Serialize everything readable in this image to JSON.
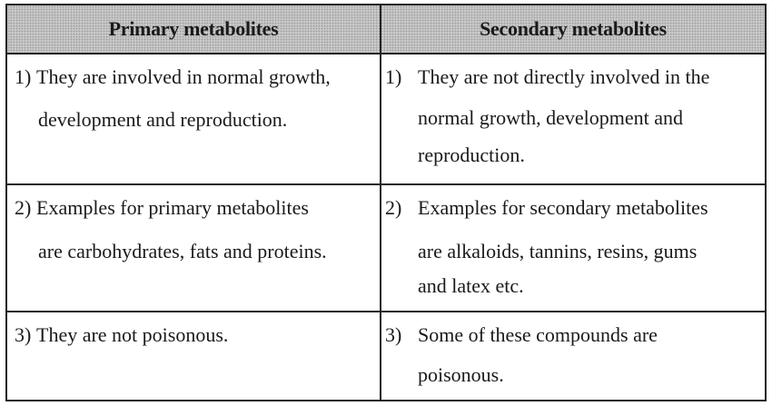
{
  "table": {
    "headers": [
      "Primary metabolites",
      "Secondary metabolites"
    ],
    "rows": [
      {
        "primary": {
          "number": "1)",
          "lines": [
            "They are involved in normal growth,",
            "development and reproduction."
          ]
        },
        "secondary": {
          "number": "1)",
          "lines": [
            "They are not directly involved in the",
            "normal growth, development and",
            "reproduction."
          ]
        }
      },
      {
        "primary": {
          "number": "2)",
          "lines": [
            "Examples for primary metabolites",
            "are carbohydrates,  fats and proteins."
          ]
        },
        "secondary": {
          "number": "2)",
          "lines": [
            "Examples for secondary metabolites",
            "are alkaloids, tannins, resins, gums",
            "and latex  etc."
          ]
        }
      },
      {
        "primary": {
          "number": "3)",
          "lines": [
            "They are not poisonous."
          ]
        },
        "secondary": {
          "number": "3)",
          "lines": [
            "Some of these compounds are",
            "poisonous."
          ]
        }
      }
    ]
  }
}
